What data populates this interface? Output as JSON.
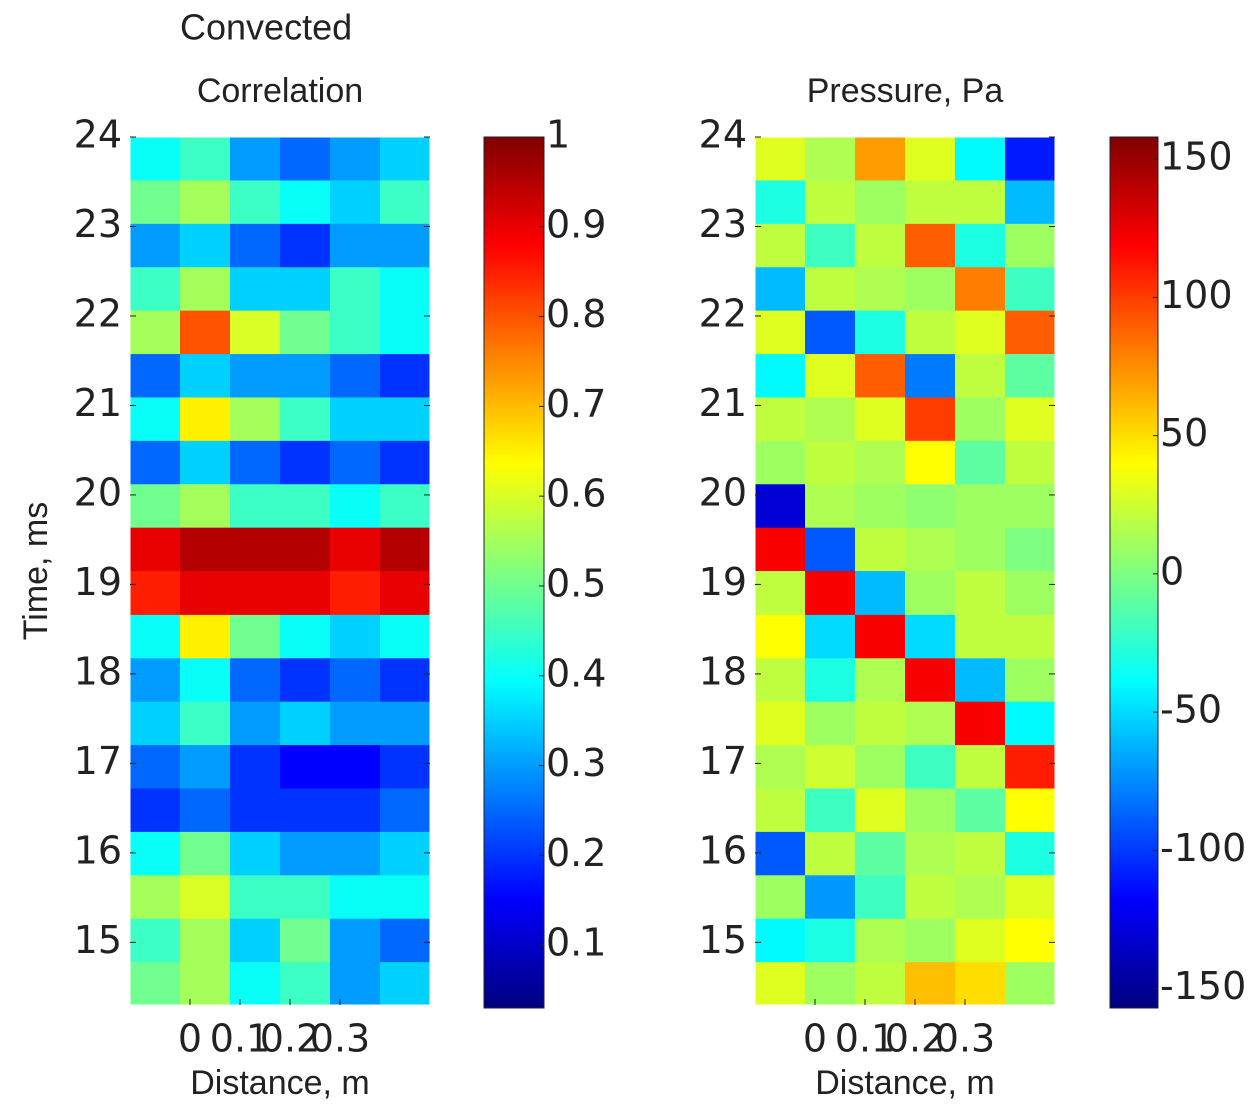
{
  "title": "Convected",
  "chart_data": [
    {
      "type": "heatmap",
      "title": "Correlation",
      "xlabel": "Distance, m",
      "ylabel": "Time, ms",
      "xlim": [
        -0.12,
        0.48
      ],
      "ylim": [
        14.3,
        24
      ],
      "xticks": [
        0,
        0.1,
        0.2,
        0.3
      ],
      "yticks": [
        15,
        16,
        17,
        18,
        19,
        20,
        21,
        22,
        23,
        24
      ],
      "colormap": "jet",
      "clim": [
        0.03,
        1
      ],
      "cticks": [
        0.1,
        0.2,
        0.3,
        0.4,
        0.5,
        0.6,
        0.7,
        0.8,
        0.9,
        1
      ],
      "x": [
        -0.07,
        0.03,
        0.13,
        0.23,
        0.33,
        0.43
      ],
      "y": [
        14.54,
        15.03,
        15.51,
        16.0,
        16.48,
        16.97,
        17.45,
        17.94,
        18.42,
        18.91,
        19.4,
        19.88,
        20.37,
        20.85,
        21.34,
        21.82,
        22.31,
        22.79,
        23.28,
        23.76
      ],
      "values": [
        [
          0.5,
          0.55,
          0.4,
          0.45,
          0.3,
          0.35
        ],
        [
          0.45,
          0.55,
          0.35,
          0.5,
          0.3,
          0.25
        ],
        [
          0.55,
          0.6,
          0.45,
          0.45,
          0.4,
          0.4
        ],
        [
          0.4,
          0.5,
          0.35,
          0.3,
          0.3,
          0.35
        ],
        [
          0.2,
          0.25,
          0.2,
          0.2,
          0.2,
          0.25
        ],
        [
          0.25,
          0.3,
          0.2,
          0.15,
          0.15,
          0.2
        ],
        [
          0.35,
          0.45,
          0.3,
          0.35,
          0.3,
          0.3
        ],
        [
          0.3,
          0.4,
          0.25,
          0.2,
          0.25,
          0.2
        ],
        [
          0.4,
          0.65,
          0.5,
          0.4,
          0.35,
          0.4
        ],
        [
          0.85,
          0.9,
          0.9,
          0.9,
          0.85,
          0.9
        ],
        [
          0.9,
          0.95,
          0.95,
          0.95,
          0.9,
          0.95
        ],
        [
          0.5,
          0.55,
          0.45,
          0.45,
          0.4,
          0.45
        ],
        [
          0.25,
          0.35,
          0.25,
          0.2,
          0.25,
          0.2
        ],
        [
          0.4,
          0.65,
          0.55,
          0.45,
          0.35,
          0.35
        ],
        [
          0.25,
          0.35,
          0.3,
          0.3,
          0.25,
          0.2
        ],
        [
          0.55,
          0.8,
          0.6,
          0.5,
          0.45,
          0.4
        ],
        [
          0.45,
          0.55,
          0.35,
          0.35,
          0.45,
          0.4
        ],
        [
          0.3,
          0.35,
          0.25,
          0.2,
          0.3,
          0.3
        ],
        [
          0.5,
          0.55,
          0.45,
          0.4,
          0.35,
          0.45
        ],
        [
          0.4,
          0.45,
          0.3,
          0.25,
          0.3,
          0.35
        ]
      ]
    },
    {
      "type": "heatmap",
      "title": "Pressure, Pa",
      "xlabel": "Distance, m",
      "xlim": [
        -0.12,
        0.48
      ],
      "ylim": [
        14.3,
        24
      ],
      "xticks": [
        0,
        0.1,
        0.2,
        0.3
      ],
      "yticks": [
        15,
        16,
        17,
        18,
        19,
        20,
        21,
        22,
        23,
        24
      ],
      "colormap": "jet",
      "clim": [
        -157,
        158
      ],
      "cticks": [
        -150,
        -100,
        -50,
        0,
        50,
        100,
        150
      ],
      "x": [
        -0.07,
        0.03,
        0.13,
        0.23,
        0.33,
        0.43
      ],
      "y": [
        14.54,
        15.03,
        15.51,
        16.0,
        16.48,
        16.97,
        17.45,
        17.94,
        18.42,
        18.91,
        19.4,
        19.88,
        20.37,
        20.85,
        21.34,
        21.82,
        22.31,
        22.79,
        23.28,
        23.76
      ],
      "values": [
        [
          30,
          10,
          20,
          60,
          50,
          10
        ],
        [
          -40,
          -30,
          15,
          10,
          30,
          40
        ],
        [
          10,
          -70,
          -20,
          20,
          15,
          30
        ],
        [
          -90,
          20,
          -10,
          15,
          20,
          -30
        ],
        [
          20,
          -20,
          30,
          10,
          -10,
          40
        ],
        [
          15,
          25,
          10,
          -20,
          20,
          110
        ],
        [
          30,
          10,
          20,
          15,
          120,
          -40
        ],
        [
          20,
          -30,
          15,
          120,
          -60,
          10
        ],
        [
          40,
          -50,
          120,
          -50,
          20,
          20
        ],
        [
          20,
          120,
          -60,
          10,
          20,
          10
        ],
        [
          120,
          -90,
          20,
          15,
          10,
          0
        ],
        [
          -130,
          15,
          10,
          5,
          10,
          10
        ],
        [
          10,
          20,
          15,
          40,
          -10,
          20
        ],
        [
          20,
          15,
          30,
          100,
          10,
          30
        ],
        [
          -40,
          30,
          90,
          -80,
          20,
          -10
        ],
        [
          30,
          -90,
          -30,
          20,
          30,
          90
        ],
        [
          -60,
          20,
          15,
          10,
          80,
          -20
        ],
        [
          20,
          -20,
          20,
          90,
          -30,
          10
        ],
        [
          -30,
          20,
          10,
          20,
          20,
          -60
        ],
        [
          30,
          15,
          70,
          30,
          -40,
          -110
        ]
      ]
    }
  ]
}
